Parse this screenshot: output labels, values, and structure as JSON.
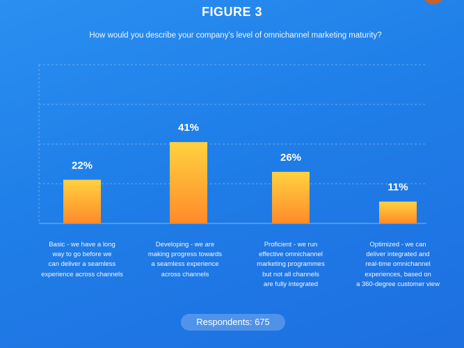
{
  "figure_label": "FIGURE 3",
  "question": "How would you describe your company's level of omnichannel marketing maturity?",
  "respondents": "Respondents: 675",
  "colors": {
    "bar_top": "#ffd23f",
    "bar_bottom": "#ff8a2a",
    "grid": "#9cc8ff"
  },
  "chart_data": {
    "type": "bar",
    "title": "How would you describe your company's level of omnichannel marketing maturity?",
    "categories": [
      "Basic - we have a long\nway to go before we\ncan deliver a seamless\nexperience across channels",
      "Developing - we are\nmaking progress towards\na seamless experience\nacross channels",
      "Proficient - we run\neffective omnichannel\nmarketing programmes\nbut not all channels\nare fully integrated",
      "Optimized - we can\ndeliver integrated and\nreal-time omnichannel\nexperiences, based on\na 360-degree customer view"
    ],
    "values": [
      22,
      41,
      26,
      11
    ],
    "value_labels": [
      "22%",
      "41%",
      "26%",
      "11%"
    ],
    "ylim": [
      0,
      80
    ],
    "grid": true,
    "xlabel": "",
    "ylabel": ""
  }
}
